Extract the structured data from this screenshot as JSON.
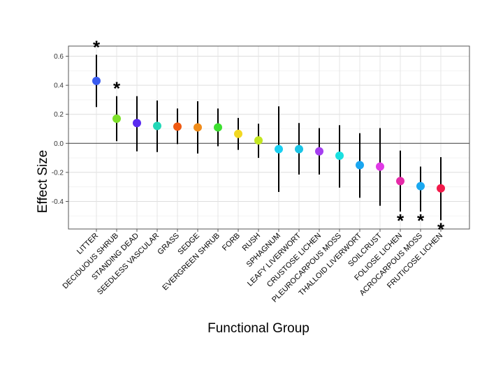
{
  "chart_data": {
    "type": "scatter",
    "xlabel": "Functional Group",
    "ylabel": "Effect Size",
    "ylim": [
      -0.59,
      0.67
    ],
    "y_ticks": [
      "0.6",
      "0.4",
      "0.2",
      "0.0",
      "-0.2",
      "-0.4"
    ],
    "y_tick_values": [
      0.6,
      0.4,
      0.2,
      0.0,
      -0.2,
      -0.4
    ],
    "grid": true,
    "zero_line": true,
    "significance_marker": "*",
    "categories": [
      "LITTER",
      "DECIDUOUS SHRUB",
      "STANDING DEAD",
      "SEEDLESS VASCULAR",
      "GRASS",
      "SEDGE",
      "EVERGREEN SHRUB",
      "FORB",
      "RUSH",
      "SPHAGNUM",
      "LEAFY LIVERWORT",
      "CRUSTOSE LICHEN",
      "PLEUROCARPOUS MOSS",
      "THALLOID LIVERWORT",
      "SOILCRUST",
      "FOLIOSE LICHEN",
      "ACROCARPOUS MOSS",
      "FRUTICOSE LICHEN"
    ],
    "values": [
      0.43,
      0.17,
      0.14,
      0.12,
      0.115,
      0.11,
      0.11,
      0.065,
      0.02,
      -0.04,
      -0.04,
      -0.055,
      -0.085,
      -0.15,
      -0.16,
      -0.26,
      -0.295,
      -0.31
    ],
    "lower": [
      0.25,
      0.015,
      -0.055,
      -0.06,
      -0.005,
      -0.07,
      -0.02,
      -0.045,
      -0.1,
      -0.335,
      -0.215,
      -0.215,
      -0.305,
      -0.375,
      -0.43,
      -0.47,
      -0.47,
      -0.53
    ],
    "upper": [
      0.61,
      0.325,
      0.325,
      0.295,
      0.24,
      0.29,
      0.24,
      0.175,
      0.135,
      0.255,
      0.14,
      0.105,
      0.125,
      0.07,
      0.105,
      -0.05,
      -0.16,
      -0.095
    ],
    "colors": [
      "#3a5cf0",
      "#7de028",
      "#5a2bf0",
      "#22d8b8",
      "#f05a12",
      "#f08c1a",
      "#3de030",
      "#f2d822",
      "#c2e620",
      "#1ad0f2",
      "#1ac4e6",
      "#a53ef0",
      "#1ae0e0",
      "#1aa6f0",
      "#e03ae6",
      "#e62aa8",
      "#1aa8f0",
      "#f21a4a"
    ],
    "significant": [
      true,
      true,
      false,
      false,
      false,
      false,
      false,
      false,
      false,
      false,
      false,
      false,
      false,
      false,
      false,
      true,
      true,
      true
    ],
    "star_position": [
      "above",
      "above",
      "",
      "",
      "",
      "",
      "",
      "",
      "",
      "",
      "",
      "",
      "",
      "",
      "",
      "below",
      "below",
      "below"
    ]
  }
}
